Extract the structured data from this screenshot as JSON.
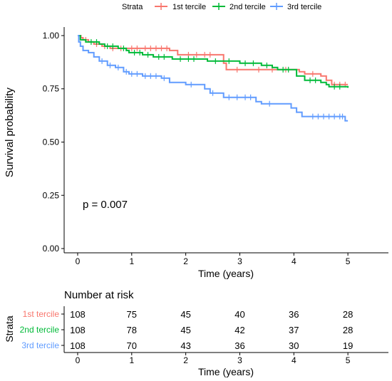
{
  "legend": {
    "title": "Strata",
    "items": [
      {
        "label": "1st tercile",
        "color": "#F8766D"
      },
      {
        "label": "2nd tercile",
        "color": "#00BA38"
      },
      {
        "label": "3rd tercile",
        "color": "#619CFF"
      }
    ]
  },
  "annotation": "p = 0.007",
  "risk_table": {
    "title": "Number at risk",
    "ylabel": "Strata",
    "xlabel": "Time (years)",
    "rows": [
      {
        "label": "1st tercile",
        "color": "#F8766D",
        "values": [
          108,
          75,
          45,
          40,
          36,
          28
        ]
      },
      {
        "label": "2nd tercile",
        "color": "#00BA38",
        "values": [
          108,
          78,
          45,
          42,
          37,
          28
        ]
      },
      {
        "label": "3rd tercile",
        "color": "#619CFF",
        "values": [
          108,
          70,
          43,
          36,
          30,
          19
        ]
      }
    ]
  },
  "chart_data": {
    "type": "line",
    "subtype": "kaplan-meier step curves",
    "xlabel": "Time (years)",
    "ylabel": "Survival probability",
    "xlim": [
      -0.25,
      5.75
    ],
    "ylim": [
      -0.02,
      1.04
    ],
    "xticks": [
      0,
      1,
      2,
      3,
      4,
      5
    ],
    "yticks": [
      0.0,
      0.25,
      0.5,
      0.75,
      1.0
    ],
    "ytick_labels": [
      "0.00",
      "0.25",
      "0.50",
      "0.75",
      "1.00"
    ],
    "grid": false,
    "legend_position": "top",
    "series": [
      {
        "name": "1st tercile",
        "color": "#F8766D",
        "steps": [
          [
            0,
            1.0
          ],
          [
            0.06,
            0.99
          ],
          [
            0.1,
            0.98
          ],
          [
            0.2,
            0.97
          ],
          [
            0.3,
            0.96
          ],
          [
            0.45,
            0.95
          ],
          [
            0.6,
            0.94
          ],
          [
            1.7,
            0.93
          ],
          [
            1.85,
            0.91
          ],
          [
            2.7,
            0.87
          ],
          [
            2.75,
            0.84
          ],
          [
            4.1,
            0.83
          ],
          [
            4.2,
            0.82
          ],
          [
            4.5,
            0.81
          ],
          [
            4.6,
            0.79
          ],
          [
            4.7,
            0.77
          ],
          [
            5.0,
            0.77
          ]
        ],
        "censor": [
          0.15,
          0.35,
          0.5,
          0.65,
          0.8,
          1.0,
          1.1,
          1.25,
          1.35,
          1.45,
          1.55,
          1.65,
          2.05,
          2.2,
          2.35,
          2.45,
          2.95,
          3.35,
          3.6,
          3.85,
          4.35,
          4.75,
          4.85,
          4.95
        ]
      },
      {
        "name": "2nd tercile",
        "color": "#00BA38",
        "steps": [
          [
            0,
            1.0
          ],
          [
            0.05,
            0.98
          ],
          [
            0.15,
            0.97
          ],
          [
            0.4,
            0.96
          ],
          [
            0.5,
            0.95
          ],
          [
            0.75,
            0.94
          ],
          [
            0.9,
            0.93
          ],
          [
            0.95,
            0.92
          ],
          [
            1.2,
            0.91
          ],
          [
            1.4,
            0.9
          ],
          [
            1.75,
            0.89
          ],
          [
            2.25,
            0.89
          ],
          [
            2.4,
            0.88
          ],
          [
            3.0,
            0.87
          ],
          [
            3.4,
            0.86
          ],
          [
            3.6,
            0.85
          ],
          [
            3.7,
            0.84
          ],
          [
            4.0,
            0.84
          ],
          [
            4.05,
            0.81
          ],
          [
            4.2,
            0.79
          ],
          [
            4.5,
            0.78
          ],
          [
            4.6,
            0.77
          ],
          [
            4.65,
            0.76
          ],
          [
            4.95,
            0.76
          ],
          [
            5.0,
            0.755
          ]
        ],
        "censor": [
          0.25,
          0.35,
          0.55,
          0.65,
          0.85,
          1.05,
          1.15,
          1.3,
          1.5,
          1.6,
          1.9,
          2.05,
          2.15,
          2.55,
          2.8,
          3.1,
          3.25,
          3.5,
          3.8,
          3.9,
          4.3,
          4.4,
          4.75,
          4.85
        ]
      },
      {
        "name": "3rd tercile",
        "color": "#619CFF",
        "steps": [
          [
            0,
            1.0
          ],
          [
            0.02,
            0.97
          ],
          [
            0.05,
            0.95
          ],
          [
            0.1,
            0.93
          ],
          [
            0.2,
            0.92
          ],
          [
            0.3,
            0.9
          ],
          [
            0.4,
            0.88
          ],
          [
            0.55,
            0.86
          ],
          [
            0.7,
            0.85
          ],
          [
            0.85,
            0.83
          ],
          [
            0.95,
            0.82
          ],
          [
            1.2,
            0.81
          ],
          [
            1.55,
            0.8
          ],
          [
            1.7,
            0.78
          ],
          [
            2.0,
            0.77
          ],
          [
            2.25,
            0.77
          ],
          [
            2.35,
            0.75
          ],
          [
            2.45,
            0.73
          ],
          [
            2.7,
            0.71
          ],
          [
            3.0,
            0.71
          ],
          [
            3.3,
            0.69
          ],
          [
            3.4,
            0.68
          ],
          [
            3.9,
            0.68
          ],
          [
            3.95,
            0.66
          ],
          [
            4.05,
            0.64
          ],
          [
            4.15,
            0.62
          ],
          [
            4.95,
            0.6
          ],
          [
            5.0,
            0.6
          ]
        ],
        "censor": [
          0.45,
          0.6,
          0.75,
          0.9,
          1.0,
          1.1,
          1.25,
          1.35,
          1.45,
          1.6,
          2.1,
          2.5,
          2.8,
          2.95,
          3.1,
          3.2,
          3.55,
          4.35,
          4.45,
          4.55,
          4.65,
          4.75,
          4.85,
          4.9
        ]
      }
    ]
  }
}
